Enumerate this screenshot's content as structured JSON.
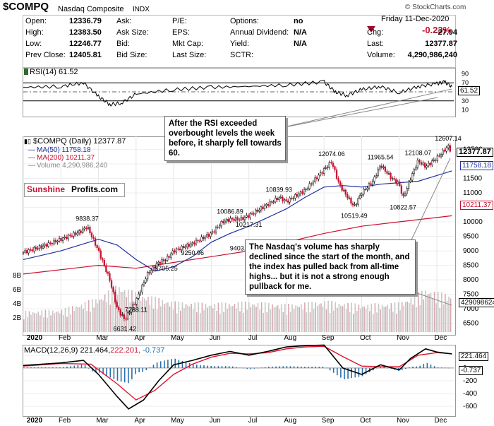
{
  "header": {
    "symbol": "$COMPQ",
    "name": "Nasdaq Composite",
    "exchange": "INDX",
    "watermark": "© StockCharts.com",
    "date": "Friday  11-Dec-2020",
    "change_pct": "-0.23%",
    "quote_left": [
      {
        "label": "Open:",
        "value": "12336.79"
      },
      {
        "label": "High:",
        "value": "12383.50"
      },
      {
        "label": "Low:",
        "value": "12246.77"
      },
      {
        "label": "Prev Close:",
        "value": "12405.81"
      }
    ],
    "quote_mid": [
      "Ask:",
      "Ask Size:",
      "Bid:",
      "Bid Size:"
    ],
    "quote_mid2": [
      "P/E:",
      "EPS:",
      "Mkt Cap:",
      "Last Size:"
    ],
    "quote_right": [
      {
        "label": "Options:",
        "value": "no"
      },
      {
        "label": "Annual Dividend:",
        "value": "N/A"
      },
      {
        "label": "Yield:",
        "value": "N/A"
      },
      {
        "label": "SCTR:",
        "value": ""
      }
    ],
    "quote_far": [
      {
        "label": "Chg:",
        "value": "-27.94"
      },
      {
        "label": "Last:",
        "value": "12377.87"
      },
      {
        "label": "Volume:",
        "value": "4,290,986,240"
      }
    ]
  },
  "rsi": {
    "label": "RSI(14) 61.52",
    "value_box": "61.52",
    "ticks": [
      "90",
      "70",
      "50",
      "30",
      "10"
    ]
  },
  "price": {
    "legend_title": "$COMPQ (Daily) 12377.87",
    "legend": [
      {
        "label": "MA(50) 11758.18",
        "color": "#1f2f9e"
      },
      {
        "label": "MA(200) 10211.37",
        "color": "#c8102e"
      },
      {
        "label": "Volume 4,290,986,240",
        "color": "#888888"
      }
    ],
    "logo_a": "Sunshine",
    "logo_b": "Profits.com",
    "last_box": "12377.87",
    "ma50_box": "11758.18",
    "ma200_box": "10211.37",
    "vol_box": "4290986240",
    "y_ticks": [
      "12500",
      "12000",
      "11500",
      "11000",
      "10500",
      "10000",
      "9500",
      "9000",
      "8500",
      "8000",
      "7500",
      "7000",
      "6500"
    ],
    "vol_ticks": [
      "8B",
      "6B",
      "4B",
      "2B"
    ],
    "labels": [
      "9838.37",
      "10086.89",
      "10839.93",
      "12074.06",
      "11965.54",
      "12108.07",
      "12607.14",
      "9250.96",
      "10217.31",
      "10519.49",
      "10822.57",
      "8705.25",
      "9403.00",
      "7288.11",
      "6631.42"
    ]
  },
  "macd": {
    "label_a": "MACD(12,26,9) 221.464,",
    "label_b": "222.201",
    "label_c": ", -0.737",
    "box_a": "221.464",
    "box_b": "-0.737",
    "ticks": [
      "200",
      "0",
      "-200",
      "-400",
      "-600"
    ]
  },
  "months": [
    "2020",
    "Feb",
    "Mar",
    "Apr",
    "May",
    "Jun",
    "Jul",
    "Aug",
    "Sep",
    "Oct",
    "Nov",
    "Dec"
  ],
  "annotations": {
    "rsi_note": "After the RSI exceeded overbought levels the week before, it sharply fell towards 60.",
    "volume_note": "The Nasdaq's volume has sharply declined since the start of the month, and the index has pulled back from all-time highs... but it is not a strong enough pullback for me."
  },
  "chart_data": [
    {
      "type": "line",
      "title": "$COMPQ (Daily) 12377.87",
      "x_unit": "month index (0 = Jan 2020)",
      "price_close": [
        [
          0,
          8950
        ],
        [
          0.5,
          9150
        ],
        [
          1,
          9400
        ],
        [
          1.5,
          9650
        ],
        [
          1.7,
          9838
        ],
        [
          2,
          9000
        ],
        [
          2.3,
          8000
        ],
        [
          2.5,
          7000
        ],
        [
          2.7,
          6631
        ],
        [
          3,
          7288
        ],
        [
          3.3,
          8200
        ],
        [
          3.6,
          8600
        ],
        [
          3.8,
          8705
        ],
        [
          4,
          9000
        ],
        [
          4.5,
          9250
        ],
        [
          5,
          9600
        ],
        [
          5.3,
          10000
        ],
        [
          5.5,
          10086
        ],
        [
          5.8,
          10100
        ],
        [
          6,
          10217
        ],
        [
          6.5,
          10600
        ],
        [
          6.8,
          10839
        ],
        [
          7,
          10700
        ],
        [
          7.5,
          11100
        ],
        [
          8,
          11800
        ],
        [
          8.2,
          12074
        ],
        [
          8.4,
          11300
        ],
        [
          8.6,
          10900
        ],
        [
          8.8,
          10519
        ],
        [
          9,
          11000
        ],
        [
          9.3,
          11400
        ],
        [
          9.5,
          11965
        ],
        [
          9.8,
          11500
        ],
        [
          10,
          11300
        ],
        [
          10.1,
          10822
        ],
        [
          10.3,
          11500
        ],
        [
          10.5,
          12108
        ],
        [
          10.7,
          11900
        ],
        [
          11,
          12200
        ],
        [
          11.3,
          12607
        ],
        [
          11.4,
          12377
        ]
      ],
      "ma50": [
        [
          0,
          8700
        ],
        [
          1,
          9000
        ],
        [
          2,
          9400
        ],
        [
          2.5,
          9200
        ],
        [
          3,
          8700
        ],
        [
          3.5,
          8300
        ],
        [
          4,
          8450
        ],
        [
          4.5,
          8800
        ],
        [
          5,
          9300
        ],
        [
          5.5,
          9600
        ],
        [
          6,
          9850
        ],
        [
          6.5,
          10150
        ],
        [
          7,
          10450
        ],
        [
          7.5,
          10850
        ],
        [
          8,
          11200
        ],
        [
          8.5,
          11250
        ],
        [
          9,
          11200
        ],
        [
          9.5,
          11300
        ],
        [
          10,
          11350
        ],
        [
          10.5,
          11400
        ],
        [
          11,
          11600
        ],
        [
          11.4,
          11758
        ]
      ],
      "ma200": [
        [
          0,
          8200
        ],
        [
          2,
          8500
        ],
        [
          3,
          8400
        ],
        [
          4,
          8600
        ],
        [
          5,
          8800
        ],
        [
          6,
          9000
        ],
        [
          7,
          9300
        ],
        [
          8,
          9600
        ],
        [
          9,
          9850
        ],
        [
          10,
          10000
        ],
        [
          11,
          10150
        ],
        [
          11.4,
          10211
        ]
      ],
      "volume_billions": [
        [
          0,
          2.4
        ],
        [
          1,
          2.6
        ],
        [
          2,
          4.0
        ],
        [
          2.5,
          5.5
        ],
        [
          3,
          4.5
        ],
        [
          4,
          3.5
        ],
        [
          5,
          3.3
        ],
        [
          6,
          3.5
        ],
        [
          7,
          3.2
        ],
        [
          8,
          3.6
        ],
        [
          9,
          3.2
        ],
        [
          10,
          3.4
        ],
        [
          10.7,
          5.0
        ],
        [
          11,
          4.6
        ],
        [
          11.4,
          4.29
        ]
      ],
      "ylim": [
        6200,
        12900
      ]
    },
    {
      "type": "line",
      "title": "RSI(14) 61.52",
      "rsi": [
        [
          0,
          60
        ],
        [
          1,
          62
        ],
        [
          1.6,
          70
        ],
        [
          2,
          40
        ],
        [
          2.3,
          22
        ],
        [
          2.6,
          25
        ],
        [
          3,
          45
        ],
        [
          4,
          55
        ],
        [
          5,
          60
        ],
        [
          6,
          62
        ],
        [
          7,
          65
        ],
        [
          8,
          72
        ],
        [
          8.3,
          50
        ],
        [
          8.6,
          42
        ],
        [
          9,
          55
        ],
        [
          9.5,
          62
        ],
        [
          10,
          48
        ],
        [
          10.5,
          62
        ],
        [
          11,
          68
        ],
        [
          11.2,
          72
        ],
        [
          11.4,
          61.52
        ]
      ],
      "ylim": [
        0,
        100
      ]
    },
    {
      "type": "line",
      "title": "MACD(12,26,9) 221.464, 222.201, -0.737",
      "macd": [
        [
          0,
          40
        ],
        [
          1,
          80
        ],
        [
          1.6,
          120
        ],
        [
          2,
          -100
        ],
        [
          2.5,
          -450
        ],
        [
          2.8,
          -640
        ],
        [
          3.2,
          -500
        ],
        [
          3.6,
          -200
        ],
        [
          4,
          50
        ],
        [
          4.5,
          120
        ],
        [
          5,
          200
        ],
        [
          5.5,
          260
        ],
        [
          6,
          200
        ],
        [
          6.5,
          260
        ],
        [
          7,
          330
        ],
        [
          7.5,
          350
        ],
        [
          8,
          360
        ],
        [
          8.5,
          0
        ],
        [
          9,
          -100
        ],
        [
          9.5,
          50
        ],
        [
          10,
          -30
        ],
        [
          10.3,
          150
        ],
        [
          10.7,
          300
        ],
        [
          11,
          250
        ],
        [
          11.4,
          221
        ]
      ],
      "signal": [
        [
          0,
          30
        ],
        [
          1,
          70
        ],
        [
          1.8,
          60
        ],
        [
          2.5,
          -250
        ],
        [
          3,
          -500
        ],
        [
          3.5,
          -350
        ],
        [
          4,
          -100
        ],
        [
          4.5,
          60
        ],
        [
          5,
          170
        ],
        [
          5.5,
          230
        ],
        [
          6,
          220
        ],
        [
          6.5,
          240
        ],
        [
          7,
          300
        ],
        [
          7.5,
          330
        ],
        [
          8,
          340
        ],
        [
          8.5,
          180
        ],
        [
          9,
          30
        ],
        [
          9.5,
          20
        ],
        [
          10,
          20
        ],
        [
          10.5,
          200
        ],
        [
          11,
          240
        ],
        [
          11.4,
          222
        ]
      ],
      "ylim": [
        -720,
        320
      ]
    }
  ]
}
